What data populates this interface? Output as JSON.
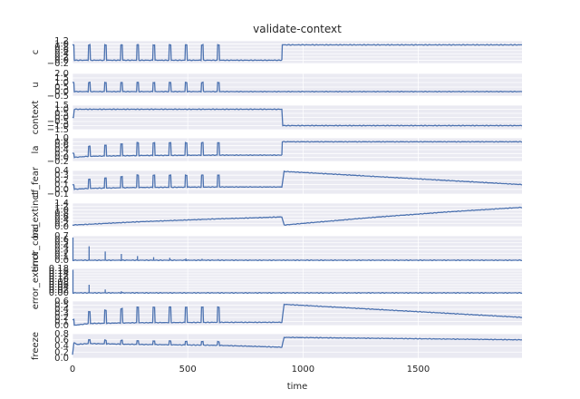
{
  "chart_data": {
    "type": "line",
    "title": "validate-context",
    "xlabel": "time",
    "xlim": [
      0,
      1950
    ],
    "xticks": [
      0,
      500,
      1000,
      1500
    ],
    "xtick_labels": [
      "0",
      "500",
      "1000",
      "1500"
    ],
    "line_color": "#4c72b0",
    "background_color": "#eaeaf2",
    "grid": true,
    "pulse_times": [
      0,
      70,
      140,
      210,
      280,
      350,
      420,
      490,
      560,
      630
    ],
    "context_switch_time": 910,
    "panels": [
      {
        "ylabel": "c",
        "ylim": [
          -0.2,
          1.2
        ],
        "ticks": [
          -0.2,
          0.0,
          0.2,
          0.4,
          0.6,
          0.8,
          1.0,
          1.2
        ],
        "tick_labels": [
          "−0.2",
          "0.0",
          "0.2",
          "0.4",
          "0.6",
          "0.8",
          "1.0",
          "1.2"
        ],
        "series": [
          {
            "x": [
              0,
              908
            ],
            "y": [
              0,
              0
            ]
          }
        ],
        "pulses": {
          "base": 0,
          "peak": 0.95
        },
        "after": {
          "start": 910,
          "end": 1950,
          "y": 0.95
        }
      },
      {
        "ylabel": "u",
        "ylim": [
          -0.5,
          2.0
        ],
        "ticks": [
          -0.5,
          0.0,
          0.5,
          1.0,
          1.5,
          2.0
        ],
        "tick_labels": [
          "−0.5",
          "0.0",
          "0.5",
          "1.0",
          "1.5",
          "2.0"
        ],
        "series": [
          {
            "x": [
              0,
              1950
            ],
            "y": [
              0,
              0
            ]
          }
        ],
        "pulses": {
          "base": 0,
          "peak": 1.0
        }
      },
      {
        "ylabel": "context",
        "ylim": [
          -1.5,
          1.5
        ],
        "ticks": [
          -1.5,
          -1.0,
          -0.5,
          0.0,
          0.5,
          1.0,
          1.5
        ],
        "tick_labels": [
          "−1.5",
          "−1.0",
          "−0.5",
          "0.0",
          "0.5",
          "1.0",
          "1.5"
        ],
        "series": [
          {
            "x": [
              0,
              4,
              8,
              908,
              912,
              1950
            ],
            "y": [
              0,
              0,
              1.0,
              1.0,
              -1.0,
              -1.0
            ]
          }
        ]
      },
      {
        "ylabel": "la",
        "ylim": [
          -0.2,
          1.0
        ],
        "ticks": [
          -0.2,
          0.0,
          0.2,
          0.4,
          0.6,
          0.8,
          1.0
        ],
        "tick_labels": [
          "−0.2",
          "0.0",
          "0.2",
          "0.4",
          "0.6",
          "0.8",
          "1.0"
        ],
        "series": [
          {
            "x": [
              0,
              70,
              280,
              630,
              908
            ],
            "y": [
              0,
              0.06,
              0.1,
              0.12,
              0.12
            ]
          }
        ],
        "pulses": {
          "peak": 0.75,
          "peak_start": 0.5,
          "first": 0.22
        },
        "after": {
          "start": 910,
          "end": 1950,
          "y": 0.8
        }
      },
      {
        "ylabel": "cf_fear",
        "ylim": [
          -0.1,
          0.4
        ],
        "ticks": [
          -0.1,
          0.0,
          0.1,
          0.2,
          0.3,
          0.4
        ],
        "tick_labels": [
          "−0.1",
          "0.0",
          "0.1",
          "0.2",
          "0.3",
          "0.4"
        ],
        "series": [
          {
            "x": [
              0,
              70,
              280,
              630,
              908,
              918,
              1950
            ],
            "y": [
              0,
              0.02,
              0.04,
              0.05,
              0.05,
              0.38,
              0.1
            ]
          }
        ],
        "pulses": {
          "peak": 0.3,
          "peak_start": 0.18,
          "first": 0.1
        }
      },
      {
        "ylabel": "ba_extinct",
        "ylim": [
          0.0,
          1.4
        ],
        "ticks": [
          0.0,
          0.2,
          0.4,
          0.6,
          0.8,
          1.0,
          1.2,
          1.4
        ],
        "tick_labels": [
          "0.0",
          "0.2",
          "0.4",
          "0.6",
          "0.8",
          "1.0",
          "1.2",
          "1.4"
        ],
        "series": [
          {
            "x": [
              0,
              300,
              600,
              908,
              918,
              1300,
              1650,
              1950
            ],
            "y": [
              0.1,
              0.3,
              0.45,
              0.58,
              0.1,
              0.55,
              0.9,
              1.15
            ]
          }
        ]
      },
      {
        "ylabel": "error_cond",
        "ylim": [
          0.0,
          0.7
        ],
        "ticks": [
          0.0,
          0.1,
          0.2,
          0.3,
          0.4,
          0.5,
          0.6,
          0.7
        ],
        "tick_labels": [
          "0.0",
          "0.1",
          "0.2",
          "0.3",
          "0.4",
          "0.5",
          "0.6",
          "0.7"
        ],
        "series": [
          {
            "x": [
              0,
              1950
            ],
            "y": [
              0,
              0
            ]
          }
        ],
        "spikes": [
          0.65,
          0.4,
          0.25,
          0.18,
          0.12,
          0.09,
          0.07,
          0.05,
          0.04,
          0.03
        ]
      },
      {
        "ylabel": "error_extinct",
        "ylim": [
          0.0,
          0.18
        ],
        "ticks": [
          0.0,
          0.02,
          0.04,
          0.06,
          0.08,
          0.1,
          0.12,
          0.14,
          0.16,
          0.18
        ],
        "tick_labels": [
          "0.00",
          "0.02",
          "0.04",
          "0.06",
          "0.08",
          "0.10",
          "0.12",
          "0.14",
          "0.16",
          "0.18"
        ],
        "series": [
          {
            "x": [
              0,
              1950
            ],
            "y": [
              0,
              0
            ]
          }
        ],
        "spikes": [
          0.17,
          0.06,
          0.025,
          0.012,
          0.006,
          0.004,
          0.003,
          0.002,
          0.001,
          0.001
        ]
      },
      {
        "ylabel": "",
        "ylim": [
          0.0,
          0.6
        ],
        "ticks": [
          0.0,
          0.1,
          0.2,
          0.3,
          0.4,
          0.5,
          0.6
        ],
        "tick_labels": [
          "0.0",
          "0.1",
          "0.2",
          "0.3",
          "0.4",
          "0.5",
          "0.6"
        ],
        "series": [
          {
            "x": [
              0,
              70,
              280,
              630,
              908,
              918,
              1950
            ],
            "y": [
              0,
              0.05,
              0.07,
              0.08,
              0.08,
              0.52,
              0.2
            ]
          }
        ],
        "pulses": {
          "peak": 0.45,
          "peak_start": 0.3,
          "first": 0.15
        }
      },
      {
        "ylabel": "freeze",
        "ylim": [
          0.0,
          0.8
        ],
        "ticks": [
          0.0,
          0.2,
          0.4,
          0.6,
          0.8
        ],
        "tick_labels": [
          "0.0",
          "0.2",
          "0.4",
          "0.6",
          "0.8"
        ],
        "series": [
          {
            "x": [
              0,
              8,
              20,
              70,
              280,
              630,
              908,
              918,
              1950
            ],
            "y": [
              0,
              0.5,
              0.45,
              0.48,
              0.45,
              0.42,
              0.36,
              0.68,
              0.6
            ]
          }
        ],
        "pulses": {
          "peak": 0.6,
          "peak_start": 0.55,
          "first": 0.55,
          "amp": 0.12
        }
      }
    ]
  }
}
